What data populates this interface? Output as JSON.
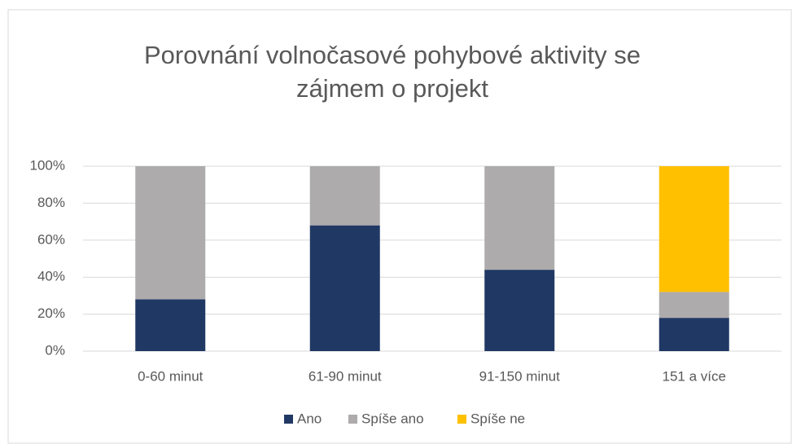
{
  "chart_data": {
    "type": "bar",
    "stacked": true,
    "title": [
      "Porovnání volnočasové pohybové aktivity se",
      "zájmem o projekt"
    ],
    "categories": [
      "0-60 minut",
      "61-90 minut",
      "91-150 minut",
      "151 a více"
    ],
    "series": [
      {
        "name": "Ano",
        "color": "#203864",
        "values": [
          28,
          68,
          44,
          18
        ]
      },
      {
        "name": "Spíše ano",
        "color": "#adabab",
        "values": [
          72,
          32,
          56,
          14
        ]
      },
      {
        "name": "Spíše ne",
        "color": "#ffc000",
        "values": [
          0,
          0,
          0,
          68
        ]
      }
    ],
    "ylim": [
      0,
      100
    ],
    "yticks": [
      {
        "value": 0,
        "label": "0%"
      },
      {
        "value": 20,
        "label": "20%"
      },
      {
        "value": 40,
        "label": "40%"
      },
      {
        "value": 60,
        "label": "60%"
      },
      {
        "value": 80,
        "label": "80%"
      },
      {
        "value": 100,
        "label": "100%"
      }
    ],
    "grid": true,
    "legend": "bottom"
  }
}
